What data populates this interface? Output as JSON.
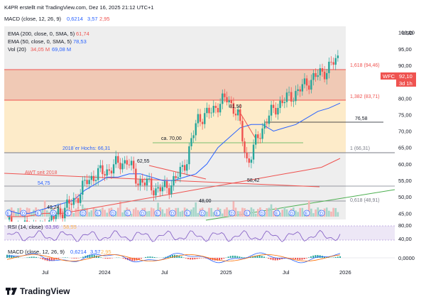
{
  "header": {
    "credit": "K4PR erstellt mit TradingView.com, Dez 16, 2025 21:12 UTC+1",
    "macd_top_label": "MACD (close, 12, 26, 9)",
    "macd_top_v1": "0,6214",
    "macd_top_v2": "3,57",
    "macd_top_v3": "2,95",
    "currency": "USD"
  },
  "legend": [
    {
      "label": "EMA (200, close, 0, SMA, 5)",
      "value": "61,74",
      "color": "#ef5350"
    },
    {
      "label": "EMA (50, close, 0, SMA, 5)",
      "value": "78,53",
      "color": "#2962ff"
    },
    {
      "label": "Vol (20)",
      "value": "34,05 M",
      "value2": "69,08 M",
      "color": "#ef5350",
      "color2": "#2962ff"
    }
  ],
  "price_axis": {
    "ticks": [
      "100,00",
      "95,00",
      "90,00",
      "85,00",
      "80,00",
      "75,00",
      "70,00",
      "65,00",
      "60,00",
      "55,00",
      "50,00",
      "45,00"
    ]
  },
  "ticker": {
    "symbol": "WFC",
    "price": "92,10",
    "countdown": "3d 1h",
    "color": "#ef5350"
  },
  "time_axis": {
    "labels": [
      "Jul",
      "2024",
      "Jul",
      "2025",
      "Jul",
      "2026"
    ]
  },
  "annotations": {
    "fib_1618": "1,618 (94,46)",
    "fib_1382": "1,382 (83,71)",
    "fib_1": "1 (66,31)",
    "fib_0618": "0,618 (48,91)",
    "peak_8150": "81,50",
    "level_7658": "76,58",
    "ca_70": "ca. 70,00",
    "hoch_2018": "2018´er Hochs: 66,31",
    "peak_6255": "62,55",
    "awt": "AWT seit 2018",
    "level_5475": "54,75",
    "low_5842": "58,42",
    "level_4924": "49,24",
    "level_4800": "48,00"
  },
  "rsi": {
    "label": "RSI (14, close)",
    "value": "63,96",
    "value2": "58,55",
    "ticks": [
      "80,00",
      "40,00"
    ]
  },
  "macd": {
    "label": "MACD (close, 12, 26, 9)",
    "v1": "0,6214",
    "v2": "3,57",
    "v3": "2,95",
    "ticks": [
      "0,0000"
    ]
  },
  "event_badges": [
    "E",
    "D"
  ],
  "brand": {
    "name": "TradingView"
  },
  "colors": {
    "up": "#26a69a",
    "down": "#ef5350",
    "ema200": "#ef5350",
    "ema50": "#2962ff",
    "zone_low": "#fff1d6",
    "zone_high": "#f1cfc0",
    "plot_bg": "#eeeeee"
  },
  "chart_data": {
    "type": "candlestick",
    "ylim": [
      44,
      101
    ],
    "x_range": [
      "2023-06",
      "2026-01"
    ],
    "candles_monthly_close": [
      42,
      40,
      41,
      40,
      41,
      45,
      47,
      50,
      55,
      57,
      58,
      60,
      61,
      55,
      54,
      52,
      53,
      56,
      62,
      74,
      75,
      78,
      80,
      75,
      60,
      68,
      74,
      78,
      80,
      82,
      85,
      87,
      89,
      92.1
    ],
    "ema50": [
      46,
      45,
      45,
      46,
      47,
      48,
      49,
      52,
      54,
      56,
      56,
      57,
      57,
      56,
      55,
      55,
      56,
      57,
      60,
      65,
      68,
      71,
      72,
      72,
      70,
      71,
      72,
      74,
      76,
      77,
      78.5
    ],
    "ema200": [
      44,
      44,
      45,
      45,
      46,
      47,
      48,
      49,
      50,
      51,
      52,
      53,
      54,
      55,
      56,
      57,
      58,
      59,
      61.7
    ]
  }
}
